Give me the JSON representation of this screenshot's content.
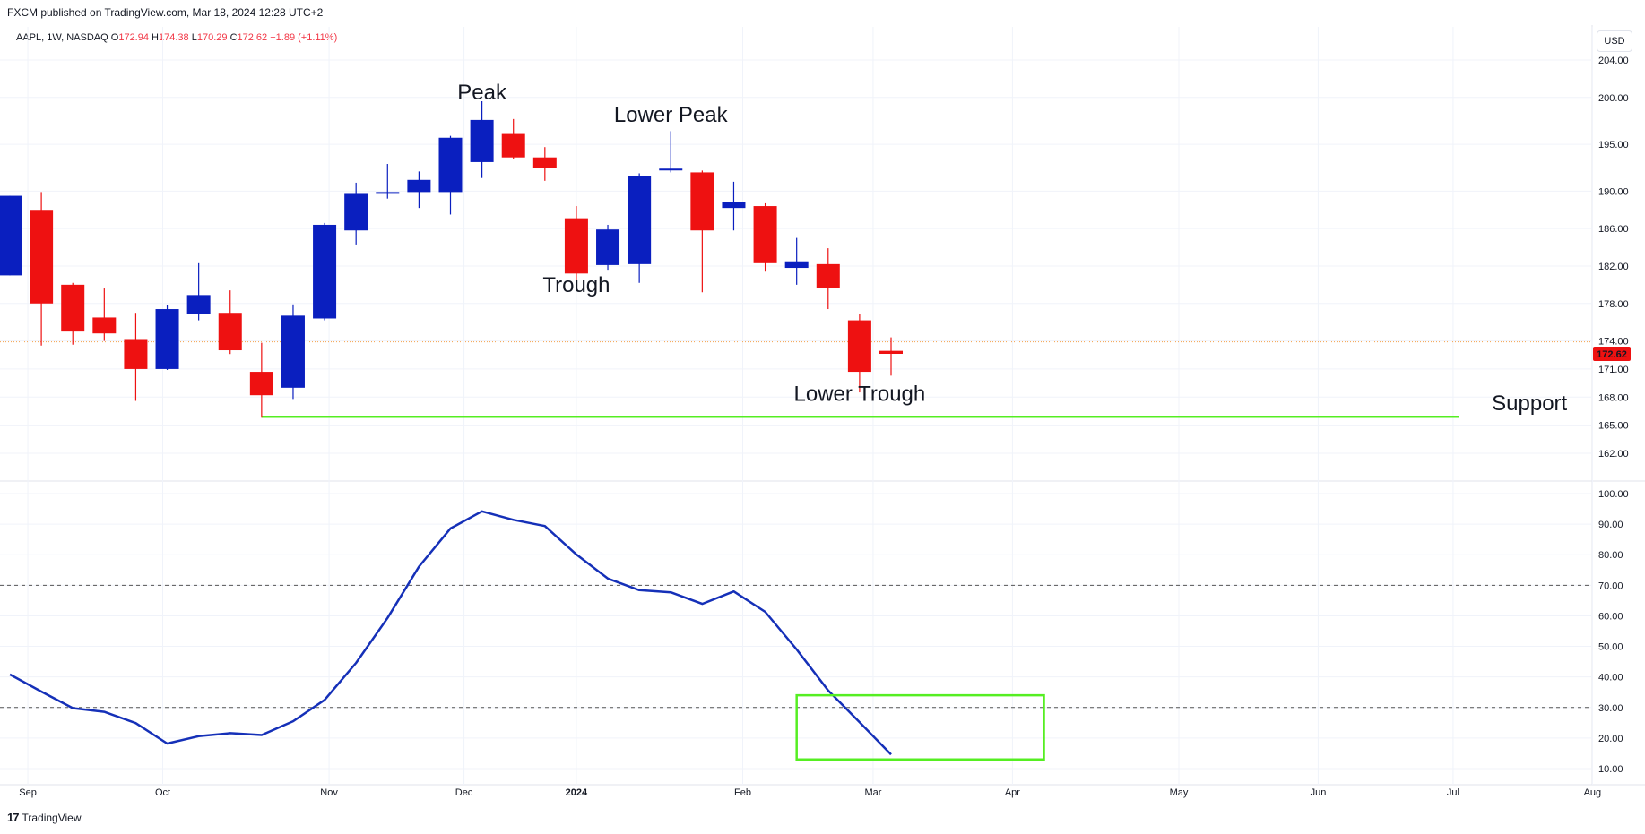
{
  "header": {
    "publisher_line": "FXCM published on TradingView.com, Mar 18, 2024 12:28 UTC+2",
    "symbol_line": "AAPL, 1W, NASDAQ",
    "open_label": "O",
    "open_value": "172.94",
    "high_label": "H",
    "high_value": "174.38",
    "low_label": "L",
    "low_value": "170.29",
    "close_label": "C",
    "close_value": "172.62",
    "change_value": "+1.89 (+1.11%)",
    "currency": "USD"
  },
  "footer": {
    "brand": "TradingView",
    "brand_mark": "17"
  },
  "colors": {
    "up": "#0a1fbf",
    "down": "#ee1111",
    "support": "#55ee22",
    "indicator": "#1530b8",
    "grid": "#f0f3fa",
    "price_tag": "#ee1111"
  },
  "chart_data": [
    {
      "type": "candlestick",
      "title": "",
      "ylim": [
        159,
        206
      ],
      "yticks": [
        204,
        200,
        195,
        190,
        186,
        182,
        178,
        174,
        171,
        168,
        165,
        162
      ],
      "ytick_labels": [
        "204.00",
        "200.00",
        "195.00",
        "190.00",
        "186.00",
        "182.00",
        "178.00",
        "174.00",
        "171.00",
        "168.00",
        "165.00",
        "162.00"
      ],
      "last_price": 172.62,
      "last_price_label": "172.62",
      "current_price_line": 173.9,
      "candles": [
        {
          "date": "2023-08-28",
          "o": 181.0,
          "h": 189.5,
          "l": 181.0,
          "c": 189.5
        },
        {
          "date": "2023-09-04",
          "o": 188.0,
          "h": 189.9,
          "l": 173.5,
          "c": 178.0
        },
        {
          "date": "2023-09-11",
          "o": 180.0,
          "h": 180.2,
          "l": 173.6,
          "c": 175.0
        },
        {
          "date": "2023-09-18",
          "o": 176.5,
          "h": 179.6,
          "l": 174.0,
          "c": 174.8
        },
        {
          "date": "2023-09-25",
          "o": 174.2,
          "h": 177.0,
          "l": 167.6,
          "c": 171.0
        },
        {
          "date": "2023-10-02",
          "o": 171.0,
          "h": 177.8,
          "l": 170.9,
          "c": 177.4
        },
        {
          "date": "2023-10-09",
          "o": 176.9,
          "h": 182.3,
          "l": 176.2,
          "c": 178.9
        },
        {
          "date": "2023-10-16",
          "o": 177.0,
          "h": 179.4,
          "l": 172.6,
          "c": 173.0
        },
        {
          "date": "2023-10-23",
          "o": 170.7,
          "h": 173.8,
          "l": 165.8,
          "c": 168.2
        },
        {
          "date": "2023-10-30",
          "o": 169.0,
          "h": 177.9,
          "l": 167.8,
          "c": 176.7
        },
        {
          "date": "2023-11-06",
          "o": 176.4,
          "h": 186.6,
          "l": 176.2,
          "c": 186.4
        },
        {
          "date": "2023-11-13",
          "o": 185.8,
          "h": 190.9,
          "l": 184.3,
          "c": 189.7
        },
        {
          "date": "2023-11-20",
          "o": 189.9,
          "h": 192.9,
          "l": 189.2,
          "c": 189.9
        },
        {
          "date": "2023-11-27",
          "o": 189.9,
          "h": 192.1,
          "l": 188.2,
          "c": 191.2
        },
        {
          "date": "2023-12-04",
          "o": 189.9,
          "h": 195.9,
          "l": 187.5,
          "c": 195.7
        },
        {
          "date": "2023-12-11",
          "o": 193.1,
          "h": 199.6,
          "l": 191.4,
          "c": 197.6
        },
        {
          "date": "2023-12-18",
          "o": 196.1,
          "h": 197.7,
          "l": 193.4,
          "c": 193.6
        },
        {
          "date": "2023-12-25",
          "o": 193.6,
          "h": 194.7,
          "l": 191.1,
          "c": 192.5
        },
        {
          "date": "2024-01-01",
          "o": 187.1,
          "h": 188.4,
          "l": 180.2,
          "c": 181.2
        },
        {
          "date": "2024-01-08",
          "o": 182.1,
          "h": 186.4,
          "l": 181.6,
          "c": 185.9
        },
        {
          "date": "2024-01-15",
          "o": 182.2,
          "h": 191.9,
          "l": 180.2,
          "c": 191.6
        },
        {
          "date": "2024-01-22",
          "o": 192.3,
          "h": 196.4,
          "l": 192.0,
          "c": 192.4
        },
        {
          "date": "2024-01-29",
          "o": 192.0,
          "h": 192.2,
          "l": 179.2,
          "c": 185.8
        },
        {
          "date": "2024-02-05",
          "o": 188.2,
          "h": 191.0,
          "l": 185.8,
          "c": 188.8
        },
        {
          "date": "2024-02-12",
          "o": 188.4,
          "h": 188.7,
          "l": 181.4,
          "c": 182.3
        },
        {
          "date": "2024-02-19",
          "o": 181.8,
          "h": 185.0,
          "l": 180.0,
          "c": 182.5
        },
        {
          "date": "2024-02-26",
          "o": 182.2,
          "h": 183.9,
          "l": 177.4,
          "c": 179.7
        },
        {
          "date": "2024-03-04",
          "o": 176.2,
          "h": 176.9,
          "l": 168.5,
          "c": 170.7
        },
        {
          "date": "2024-03-11",
          "o": 172.94,
          "h": 174.38,
          "l": 170.29,
          "c": 172.62
        }
      ],
      "support_level": 165.9,
      "support_from": "2023-10-23",
      "annotations": [
        {
          "text": "Peak",
          "date": "2023-12-11",
          "price": 199.8
        },
        {
          "text": "Lower Peak",
          "date": "2024-01-22",
          "price": 197.4
        },
        {
          "text": "Trough",
          "date": "2024-01-01",
          "price": 179.2
        },
        {
          "text": "Lower Trough",
          "date": "2024-03-04",
          "price": 167.6
        },
        {
          "text": "Support",
          "date": "2024-07-31",
          "price": 166.6
        }
      ]
    },
    {
      "type": "line",
      "title": "",
      "ylim": [
        7,
        103
      ],
      "yticks": [
        100,
        90,
        80,
        70,
        60,
        50,
        40,
        30,
        20,
        10
      ],
      "ytick_labels": [
        "100.00",
        "90.00",
        "80.00",
        "70.00",
        "60.00",
        "50.00",
        "40.00",
        "30.00",
        "20.00",
        "10.00"
      ],
      "levels": [
        70,
        30
      ],
      "series": [
        {
          "x": [
            "2023-08-28",
            "2023-09-04",
            "2023-09-11",
            "2023-09-18",
            "2023-09-25",
            "2023-10-02",
            "2023-10-09",
            "2023-10-16",
            "2023-10-23",
            "2023-10-30",
            "2023-11-06",
            "2023-11-13",
            "2023-11-20",
            "2023-11-27",
            "2023-12-04",
            "2023-12-11",
            "2023-12-18",
            "2023-12-25",
            "2024-01-01",
            "2024-01-08",
            "2024-01-15",
            "2024-01-22",
            "2024-01-29",
            "2024-02-05",
            "2024-02-12",
            "2024-02-19",
            "2024-02-26",
            "2024-03-04",
            "2024-03-11"
          ],
          "values": [
            40.8,
            35.2,
            29.8,
            28.6,
            24.9,
            18.2,
            20.6,
            21.6,
            21.0,
            25.5,
            32.5,
            44.6,
            59.3,
            76.1,
            88.6,
            94.2,
            91.4,
            89.4,
            80.1,
            72.2,
            68.4,
            67.7,
            63.9,
            68.0,
            61.3,
            49.0,
            35.6,
            25.2,
            14.6
          ]
        }
      ],
      "highlight_box": {
        "x0": "2024-02-19",
        "x1": "2024-04-14",
        "y0": 13.0,
        "y1": 34.0
      }
    }
  ],
  "time_axis": {
    "ticks": [
      {
        "label": "Sep",
        "date": "2023-09-01"
      },
      {
        "label": "Oct",
        "date": "2023-10-01"
      },
      {
        "label": "Nov",
        "date": "2023-11-07"
      },
      {
        "label": "Dec",
        "date": "2023-12-07"
      },
      {
        "label": "2024",
        "date": "2024-01-01"
      },
      {
        "label": "Feb",
        "date": "2024-02-07"
      },
      {
        "label": "Mar",
        "date": "2024-03-07"
      },
      {
        "label": "Apr",
        "date": "2024-04-07"
      },
      {
        "label": "May",
        "date": "2024-05-14"
      },
      {
        "label": "Jun",
        "date": "2024-06-14"
      },
      {
        "label": "Jul",
        "date": "2024-07-14"
      },
      {
        "label": "Aug",
        "date": "2024-08-14"
      }
    ]
  }
}
